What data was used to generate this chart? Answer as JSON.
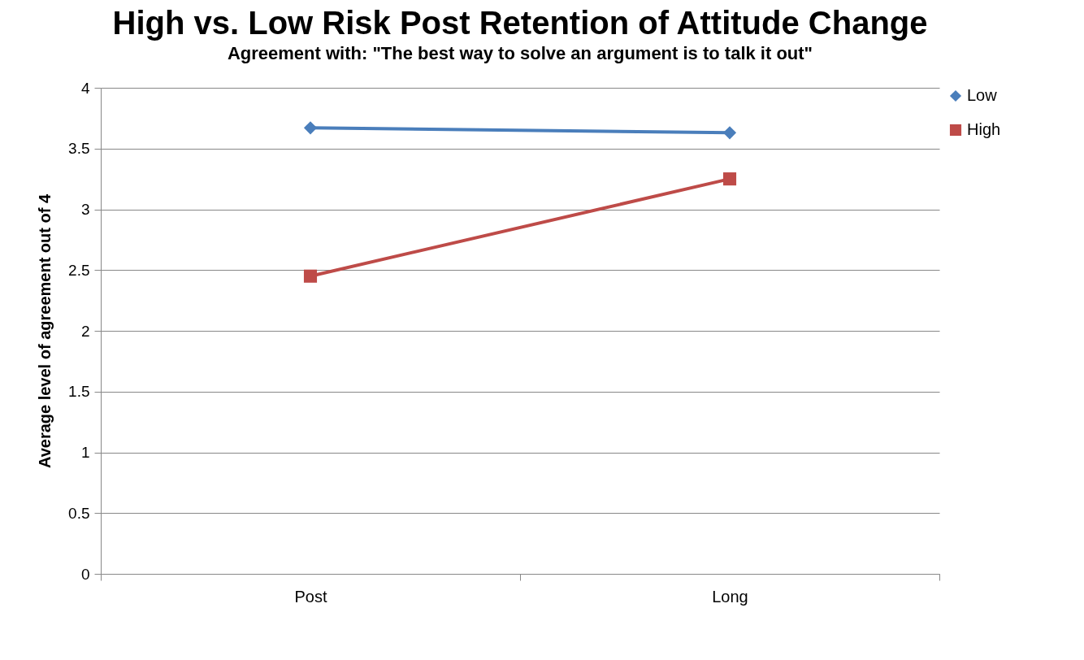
{
  "chart_data": {
    "type": "line",
    "title": "High vs. Low Risk Post Retention of Attitude Change",
    "subtitle": "Agreement with: \"The best way to solve an argument is to talk it out\"",
    "ylabel": "Average level of agreement out of 4",
    "categories": [
      "Post",
      "Long"
    ],
    "series": [
      {
        "name": "Low",
        "color": "#4a7ebb",
        "marker": "diamond",
        "values": [
          3.67,
          3.63
        ]
      },
      {
        "name": "High",
        "color": "#be4b48",
        "marker": "square",
        "values": [
          2.45,
          3.25
        ]
      }
    ],
    "ylim": [
      0,
      4
    ],
    "yticks": [
      0,
      0.5,
      1,
      1.5,
      2,
      2.5,
      3,
      3.5,
      4
    ],
    "grid": "y",
    "legend": "right",
    "line_style": "solid"
  }
}
